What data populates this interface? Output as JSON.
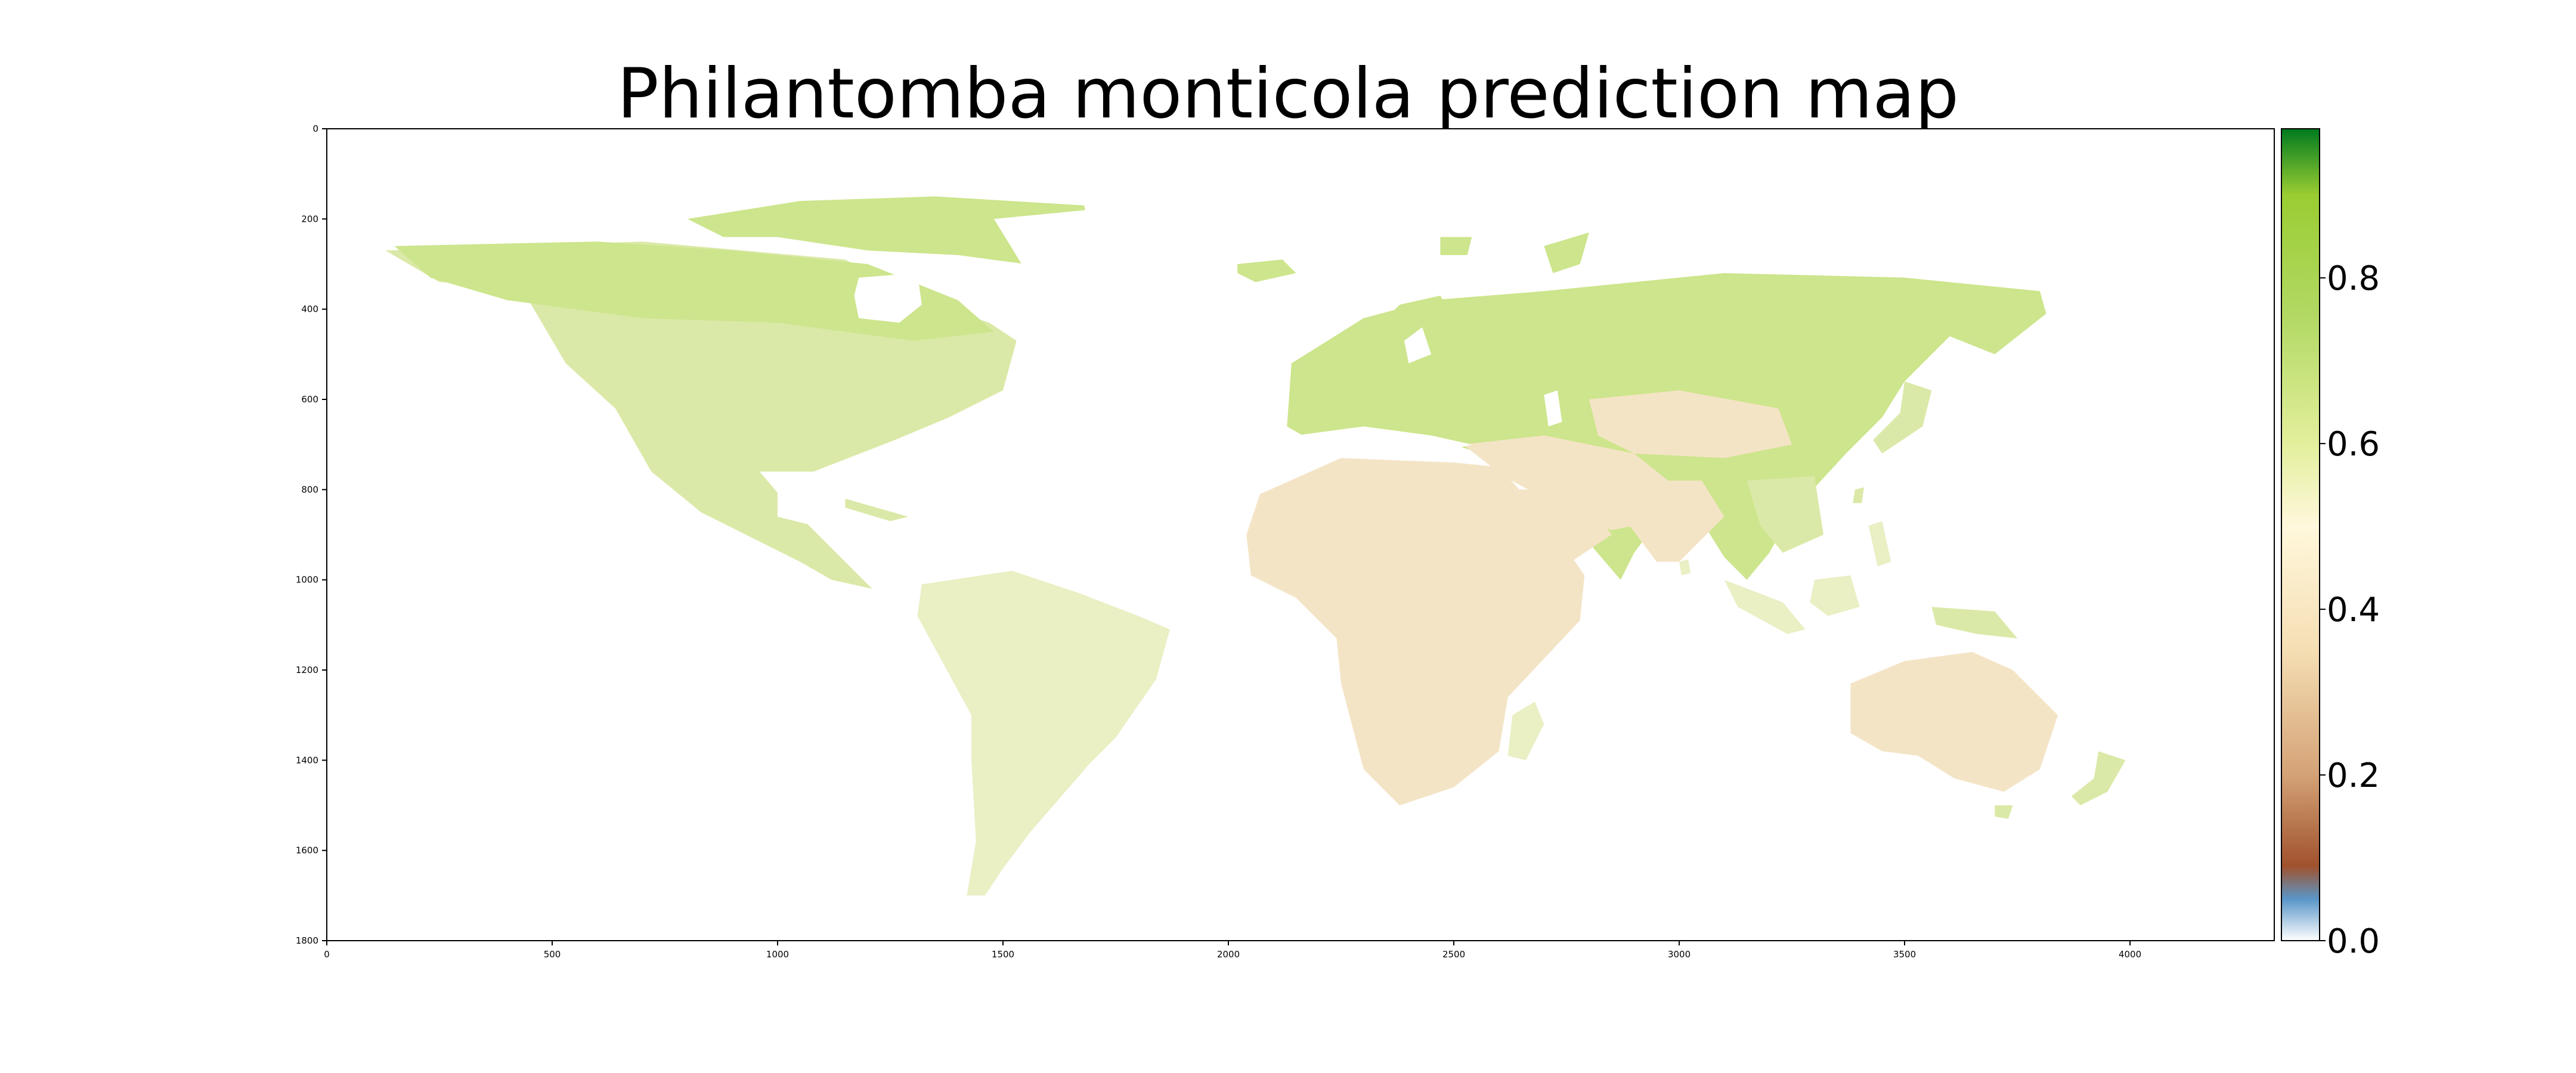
{
  "title": "Philantomba monticola prediction map",
  "chart_data": {
    "type": "heatmap",
    "title": "Philantomba monticola prediction map",
    "xlabel": "",
    "ylabel": "",
    "x_range": [
      0,
      4320
    ],
    "y_range": [
      0,
      1800
    ],
    "y_inverted": true,
    "x_ticks": [
      0,
      500,
      1000,
      1500,
      2000,
      2500,
      3000,
      3500,
      4000
    ],
    "y_ticks": [
      0,
      200,
      400,
      600,
      800,
      1000,
      1200,
      1400,
      1600,
      1800
    ],
    "colorbar": {
      "range": [
        0.0,
        0.98
      ],
      "ticks": [
        "0.0",
        "0.2",
        "0.4",
        "0.6",
        "0.8"
      ],
      "colormap": [
        {
          "value": 0.0,
          "color": "#ffffff"
        },
        {
          "value": 0.05,
          "color": "#5a96c8"
        },
        {
          "value": 0.09,
          "color": "#a0522d"
        },
        {
          "value": 0.2,
          "color": "#d4a276"
        },
        {
          "value": 0.35,
          "color": "#f5deb3"
        },
        {
          "value": 0.5,
          "color": "#fff8dc"
        },
        {
          "value": 0.6,
          "color": "#e3ef9c"
        },
        {
          "value": 0.75,
          "color": "#b3d965"
        },
        {
          "value": 0.9,
          "color": "#9acd32"
        },
        {
          "value": 0.98,
          "color": "#007a1f"
        }
      ]
    },
    "colors": {
      "ocean": "#ffffff",
      "high_latitude_land": "#cde58c",
      "temperate_land": "#dbe9a8",
      "tropical_land": "#eaefc4",
      "arid_land": "#f4e4c6"
    },
    "grid": false
  }
}
